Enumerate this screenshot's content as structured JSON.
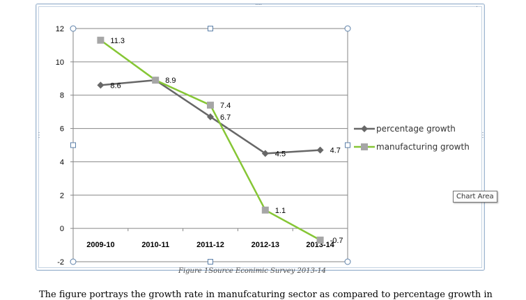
{
  "chart_data": {
    "type": "line",
    "categories": [
      "2009-10",
      "2010-11",
      "2011-12",
      "2012-13",
      "2013-14"
    ],
    "series": [
      {
        "name": "percentage growth",
        "values": [
          8.6,
          8.9,
          6.7,
          4.5,
          4.7
        ],
        "color": "#676767",
        "marker": "diamond"
      },
      {
        "name": "manufacturing growth",
        "values": [
          11.3,
          8.9,
          7.4,
          1.1,
          -0.7
        ],
        "color": "#86c635",
        "marker": "square",
        "marker_color": "#a6a6a6"
      }
    ],
    "data_labels": {
      "percentage growth": [
        "8.6",
        "",
        "6.7",
        "4.5",
        "4.7"
      ],
      "manufacturing growth": [
        "11.3",
        "8.9",
        "7.4",
        "1.1",
        "-0.7"
      ]
    },
    "yticks": [
      12,
      10,
      8,
      6,
      4,
      2,
      0,
      -2
    ],
    "ylim": [
      -2,
      12
    ],
    "grid": true,
    "legend_position": "right"
  },
  "tooltip": "Chart Area",
  "caption": "Figure 1Source Econimic Survey 2013-14",
  "body_text": "The figure portrays the growth rate in manufcaturing sector as compared to percentage growth in"
}
